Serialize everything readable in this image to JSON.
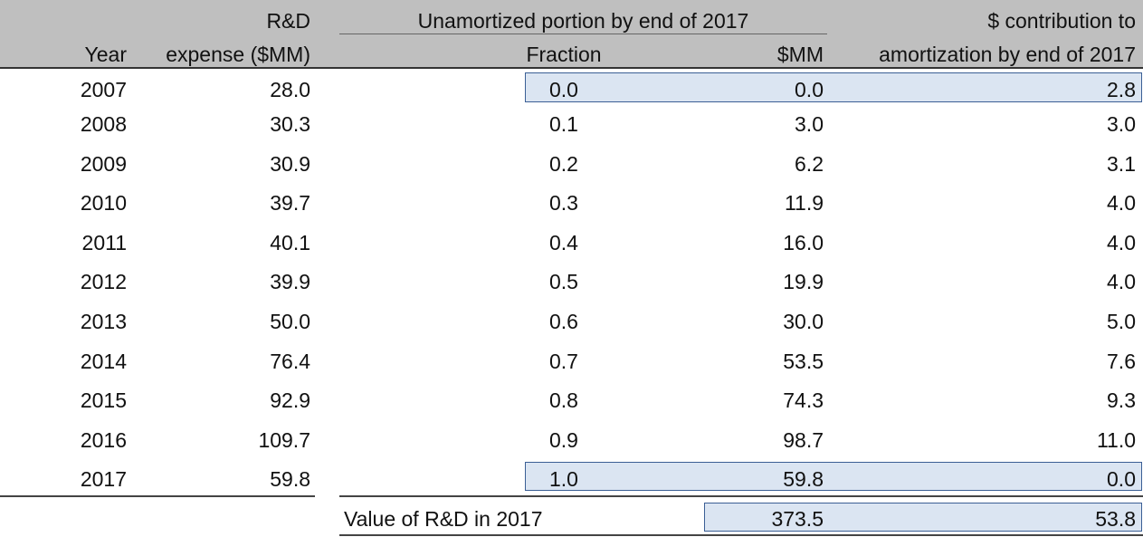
{
  "headers": {
    "rd_top": "R&D",
    "rd_bottom": "expense ($MM)",
    "year": "Year",
    "unamortized_group": "Unamortized portion by end of 2017",
    "fraction": "Fraction",
    "mm": "$MM",
    "contrib_top": "$ contribution to",
    "contrib_bottom": "amortization by end of 2017"
  },
  "rows": [
    {
      "year": "2007",
      "rd": "28.0",
      "fraction": "0.0",
      "mm": "0.0",
      "amort": "2.8"
    },
    {
      "year": "2008",
      "rd": "30.3",
      "fraction": "0.1",
      "mm": "3.0",
      "amort": "3.0"
    },
    {
      "year": "2009",
      "rd": "30.9",
      "fraction": "0.2",
      "mm": "6.2",
      "amort": "3.1"
    },
    {
      "year": "2010",
      "rd": "39.7",
      "fraction": "0.3",
      "mm": "11.9",
      "amort": "4.0"
    },
    {
      "year": "2011",
      "rd": "40.1",
      "fraction": "0.4",
      "mm": "16.0",
      "amort": "4.0"
    },
    {
      "year": "2012",
      "rd": "39.9",
      "fraction": "0.5",
      "mm": "19.9",
      "amort": "4.0"
    },
    {
      "year": "2013",
      "rd": "50.0",
      "fraction": "0.6",
      "mm": "30.0",
      "amort": "5.0"
    },
    {
      "year": "2014",
      "rd": "76.4",
      "fraction": "0.7",
      "mm": "53.5",
      "amort": "7.6"
    },
    {
      "year": "2015",
      "rd": "92.9",
      "fraction": "0.8",
      "mm": "74.3",
      "amort": "9.3"
    },
    {
      "year": "2016",
      "rd": "109.7",
      "fraction": "0.9",
      "mm": "98.7",
      "amort": "11.0"
    },
    {
      "year": "2017",
      "rd": "59.8",
      "fraction": "1.0",
      "mm": "59.8",
      "amort": "0.0"
    }
  ],
  "total": {
    "label": "Value of R&D in 2017",
    "mm": "373.5",
    "amort": "53.8"
  },
  "colors": {
    "header_bg": "#bfbfbf",
    "highlight_fill": "#dbe5f2",
    "highlight_border": "#3b5f95"
  }
}
